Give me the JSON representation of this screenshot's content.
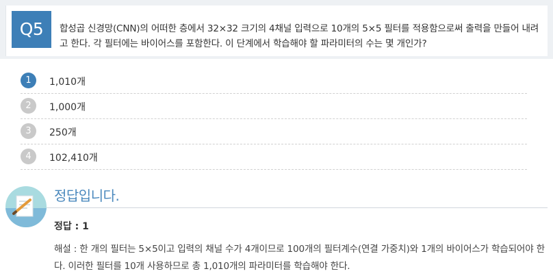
{
  "question": {
    "number": "Q5",
    "text": "합성곱 신경망(CNN)의 어떠한 층에서 32×32 크기의 4채널 입력으로 10개의 5×5 필터를 적용함으로써 출력을 만들어 내려고 한다. 각 필터에는 바이어스를 포함한다. 이 단계에서 학습해야 할 파라미터의 수는 몇 개인가?"
  },
  "options": [
    {
      "number": "1",
      "label": "1,010개",
      "selected": true
    },
    {
      "number": "2",
      "label": "1,000개",
      "selected": false
    },
    {
      "number": "3",
      "label": "250개",
      "selected": false
    },
    {
      "number": "4",
      "label": "102,410개",
      "selected": false
    }
  ],
  "answer": {
    "title": "정답입니다.",
    "label": "정답 : 1",
    "explanation": "해설 : 한 개의 필터는 5×5이고 입력의 채널 수가 4개이므로 100개의 필터계수(연결 가중치)와 1개의 바이어스가 학습되어야 한다. 이러한 필터를 10개 사용하므로 총 1,010개의 파라미터를 학습해야 한다.",
    "icon": "note-pencil-icon"
  },
  "colors": {
    "accent": "#3d7fb7",
    "option_inactive": "#c9c9c9",
    "answer_title": "#4a88bd",
    "header_bg": "#eef1f4"
  }
}
